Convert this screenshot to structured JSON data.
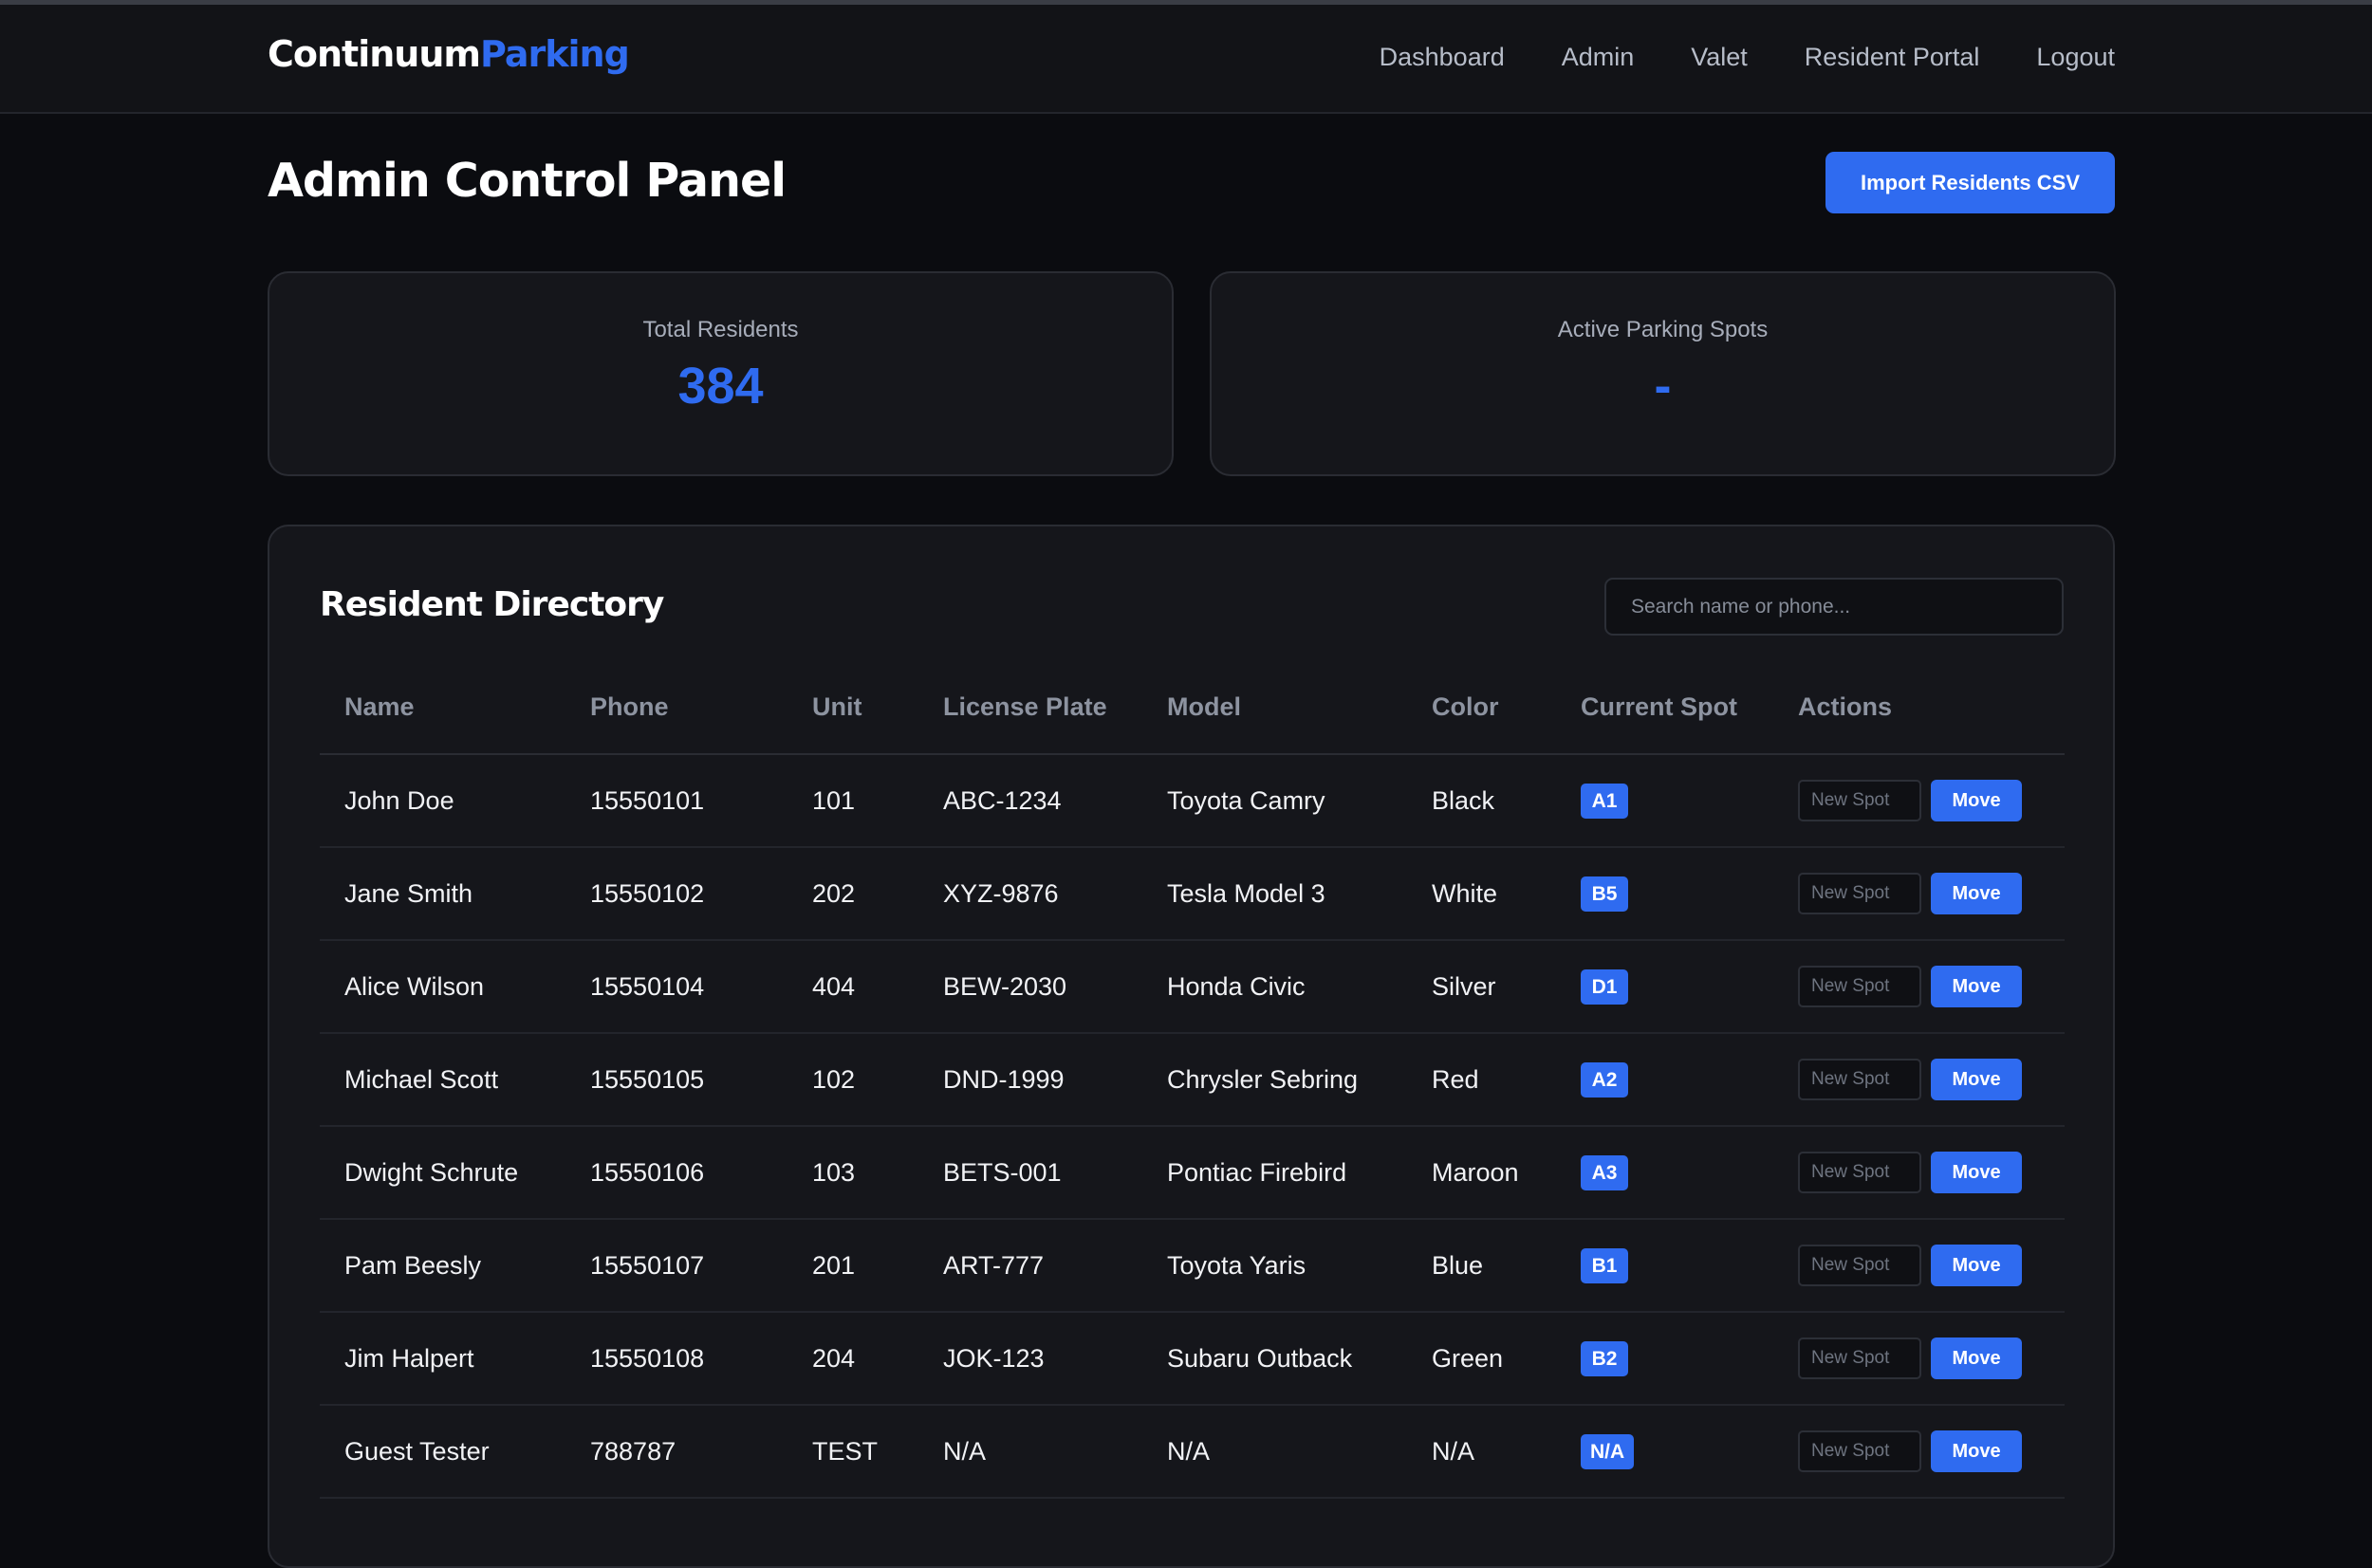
{
  "brand": {
    "part1": "Continuum",
    "part2": "Parking"
  },
  "nav": [
    {
      "label": "Dashboard"
    },
    {
      "label": "Admin"
    },
    {
      "label": "Valet"
    },
    {
      "label": "Resident Portal"
    },
    {
      "label": "Logout"
    }
  ],
  "page": {
    "title": "Admin Control Panel",
    "import_label": "Import Residents CSV"
  },
  "stats": [
    {
      "label": "Total Residents",
      "value": "384"
    },
    {
      "label": "Active Parking Spots",
      "value": "-"
    }
  ],
  "directory": {
    "title": "Resident Directory",
    "search_placeholder": "Search name or phone...",
    "columns": [
      "Name",
      "Phone",
      "Unit",
      "License Plate",
      "Model",
      "Color",
      "Current Spot",
      "Actions"
    ],
    "new_spot_placeholder": "New Spot",
    "move_label": "Move",
    "rows": [
      {
        "name": "John Doe",
        "phone": "15550101",
        "unit": "101",
        "plate": "ABC-1234",
        "model": "Toyota Camry",
        "color": "Black",
        "spot": "A1"
      },
      {
        "name": "Jane Smith",
        "phone": "15550102",
        "unit": "202",
        "plate": "XYZ-9876",
        "model": "Tesla Model 3",
        "color": "White",
        "spot": "B5"
      },
      {
        "name": "Alice Wilson",
        "phone": "15550104",
        "unit": "404",
        "plate": "BEW-2030",
        "model": "Honda Civic",
        "color": "Silver",
        "spot": "D1"
      },
      {
        "name": "Michael Scott",
        "phone": "15550105",
        "unit": "102",
        "plate": "DND-1999",
        "model": "Chrysler Sebring",
        "color": "Red",
        "spot": "A2"
      },
      {
        "name": "Dwight Schrute",
        "phone": "15550106",
        "unit": "103",
        "plate": "BETS-001",
        "model": "Pontiac Firebird",
        "color": "Maroon",
        "spot": "A3"
      },
      {
        "name": "Pam Beesly",
        "phone": "15550107",
        "unit": "201",
        "plate": "ART-777",
        "model": "Toyota Yaris",
        "color": "Blue",
        "spot": "B1"
      },
      {
        "name": "Jim Halpert",
        "phone": "15550108",
        "unit": "204",
        "plate": "JOK-123",
        "model": "Subaru Outback",
        "color": "Green",
        "spot": "B2"
      },
      {
        "name": "Guest Tester",
        "phone": "788787",
        "unit": "TEST",
        "plate": "N/A",
        "model": "N/A",
        "color": "N/A",
        "spot": "N/A"
      }
    ]
  },
  "colors": {
    "accent": "#2f6bf0",
    "background": "#0b0c10",
    "card": "#15161b"
  }
}
